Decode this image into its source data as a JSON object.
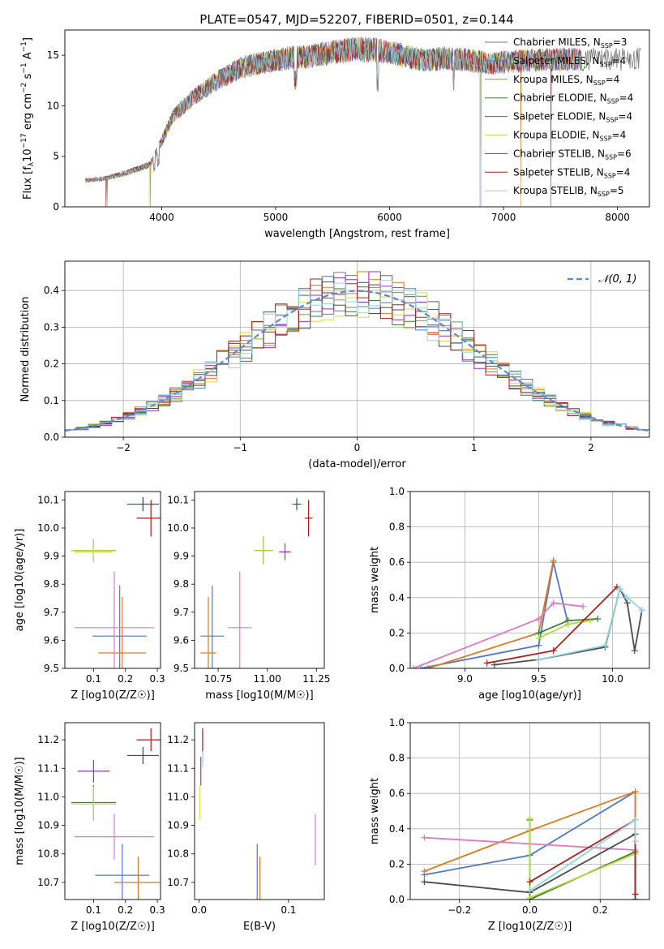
{
  "figure": {
    "title": "PLATE=0547, MJD=52207, FIBERID=0501, z=0.144"
  },
  "colors": {
    "chabrier_miles": "#7f7f7f",
    "salpeter_miles": "#4c78d0",
    "kroupa_miles": "#c8801b",
    "chabrier_elodie": "#3a7d2e",
    "salpeter_elodie": "#9b30c8",
    "kroupa_elodie": "#d8d84a",
    "chabrier_stelib": "#4d4d4d",
    "salpeter_stelib": "#b21b1b",
    "kroupa_stelib": "#8fd6e2",
    "normal": "#5b8bd6",
    "light_green": "#b5d938",
    "pink": "#e377c2",
    "orange": "#e07a1f"
  },
  "chart_data": [
    {
      "id": "spectrum",
      "type": "line",
      "xlabel": "wavelength [Angstrom, rest frame]",
      "ylabel": "Flux [f_λ10^-17 erg cm^-2 s^-1 A^-1]",
      "xlim": [
        3150,
        8280
      ],
      "ylim": [
        0,
        17.5
      ],
      "xticks": [
        "4000",
        "5000",
        "6000",
        "7000",
        "8000"
      ],
      "yticks": [
        "0",
        "5",
        "10",
        "15"
      ],
      "continuum": {
        "x": [
          3330,
          3500,
          3700,
          3900,
          4000,
          4100,
          4300,
          4500,
          4700,
          4900,
          5100,
          5300,
          5500,
          5700,
          5900,
          6100,
          6300,
          6500,
          6700,
          6900,
          7100,
          7300,
          7500
        ],
        "y": [
          2.6,
          2.8,
          3.4,
          4.2,
          6.5,
          9.0,
          11.0,
          12.6,
          13.8,
          14.3,
          14.7,
          14.9,
          15.3,
          15.6,
          15.5,
          15.0,
          14.5,
          14.7,
          14.5,
          14.2,
          14.4,
          14.5,
          14.6
        ]
      },
      "legend": {
        "position": "upper right",
        "entries": [
          {
            "label": "Chabrier MILES, N_SSP=3",
            "color": "#7f7f7f"
          },
          {
            "label": "Salpeter MILES, N_SSP=4",
            "color": "#4c78d0"
          },
          {
            "label": "Kroupa MILES, N_SSP=4",
            "color": "#c8801b"
          },
          {
            "label": "Chabrier ELODIE, N_SSP=4",
            "color": "#3a7d2e"
          },
          {
            "label": "Salpeter ELODIE, N_SSP=4",
            "color": "#9b30c8"
          },
          {
            "label": "Kroupa ELODIE, N_SSP=4",
            "color": "#d8d84a"
          },
          {
            "label": "Chabrier STELIB, N_SSP=6",
            "color": "#4d4d4d"
          },
          {
            "label": "Salpeter STELIB, N_SSP=4",
            "color": "#b21b1b"
          },
          {
            "label": "Kroupa STELIB, N_SSP=5",
            "color": "#8fd6e2"
          }
        ]
      }
    },
    {
      "id": "residuals",
      "type": "line",
      "xlabel": "(data-model)/error",
      "ylabel": "Normed distribution",
      "xlim": [
        -2.5,
        2.5
      ],
      "ylim": [
        0,
        0.48
      ],
      "xticks": [
        "−2",
        "−1",
        "0",
        "1",
        "2"
      ],
      "yticks": [
        "0.0",
        "0.1",
        "0.2",
        "0.3",
        "0.4"
      ],
      "grid": true,
      "legend": {
        "position": "upper right",
        "label": "𝒩(0, 1)"
      },
      "bin_width": 0.1
    },
    {
      "id": "z_age",
      "type": "scatter",
      "xlabel": "Z [log10(Z/Z☉)]",
      "ylabel": "age  [log10(age/yr)]",
      "xlim": [
        0.01,
        0.31
      ],
      "ylim": [
        9.5,
        10.13
      ],
      "xticks": [
        "0.1",
        "0.2",
        "0.3"
      ],
      "yticks": [
        "9.5",
        "9.6",
        "9.7",
        "9.8",
        "9.9",
        "10.0",
        "10.1"
      ],
      "points": [
        {
          "x": 0.182,
          "xerr": 0.085,
          "y": 9.615,
          "yerr": 0.18,
          "color": "#4c78d0"
        },
        {
          "x": 0.19,
          "xerr": 0.075,
          "y": 9.555,
          "yerr": 0.2,
          "color": "#e07a1f"
        },
        {
          "x": 0.165,
          "xerr": 0.125,
          "y": 9.645,
          "yerr": 0.2,
          "color": "#e377c2"
        },
        {
          "x": 0.1,
          "xerr": 0.07,
          "y": 9.92,
          "yerr": 0.04,
          "color": "#3a7d2e"
        },
        {
          "x": 0.1,
          "xerr": 0.07,
          "y": 9.92,
          "yerr": 0.04,
          "color": "#b5d938"
        },
        {
          "x": 0.1,
          "xerr": 0.06,
          "y": 9.915,
          "yerr": 0.02,
          "color": "#d8d84a"
        },
        {
          "x": 0.255,
          "xerr": 0.05,
          "y": 10.085,
          "yerr": 0.025,
          "color": "#8fd6e2"
        },
        {
          "x": 0.255,
          "xerr": 0.05,
          "y": 10.085,
          "yerr": 0.025,
          "color": "#4d4d4d"
        },
        {
          "x": 0.28,
          "xerr": 0.045,
          "y": 10.035,
          "yerr": 0.065,
          "color": "#b21b1b"
        }
      ]
    },
    {
      "id": "mass_age",
      "type": "scatter",
      "xlabel": "mass [log10(M/M☉)]",
      "ylabel": "",
      "xlim": [
        10.63,
        11.29
      ],
      "ylim": [
        9.5,
        10.13
      ],
      "xticks": [
        "10.75",
        "11.00",
        "11.25"
      ],
      "yticks": [
        "9.5",
        "9.6",
        "9.7",
        "9.8",
        "9.9",
        "10.0",
        "10.1"
      ],
      "points": [
        {
          "x": 10.72,
          "xerr": 0.06,
          "y": 9.615,
          "yerr": 0.18,
          "color": "#4c78d0"
        },
        {
          "x": 10.7,
          "xerr": 0.04,
          "y": 9.555,
          "yerr": 0.2,
          "color": "#e07a1f"
        },
        {
          "x": 10.86,
          "xerr": 0.06,
          "y": 9.645,
          "yerr": 0.2,
          "color": "#e377c2"
        },
        {
          "x": 10.98,
          "xerr": 0.04,
          "y": 9.92,
          "yerr": 0.05,
          "color": "#3a7d2e"
        },
        {
          "x": 10.98,
          "xerr": 0.05,
          "y": 9.92,
          "yerr": 0.05,
          "color": "#b5d938"
        },
        {
          "x": 11.09,
          "xerr": 0.03,
          "y": 9.915,
          "yerr": 0.03,
          "color": "#9b30c8"
        },
        {
          "x": 11.15,
          "xerr": 0.03,
          "y": 10.085,
          "yerr": 0.025,
          "color": "#8fd6e2"
        },
        {
          "x": 11.15,
          "xerr": 0.02,
          "y": 10.085,
          "yerr": 0.02,
          "color": "#4d4d4d"
        },
        {
          "x": 11.21,
          "xerr": 0.02,
          "y": 10.035,
          "yerr": 0.065,
          "color": "#b21b1b"
        }
      ]
    },
    {
      "id": "age_weight",
      "type": "line",
      "xlabel": "age  [log10(age/yr)]",
      "ylabel": "mass weight",
      "xlim": [
        8.63,
        10.25
      ],
      "ylim": [
        0,
        1.0
      ],
      "xticks": [
        "9.0",
        "9.5",
        "10.0"
      ],
      "yticks": [
        "0.0",
        "0.2",
        "0.4",
        "0.6",
        "0.8",
        "1.0"
      ],
      "grid": true,
      "series": [
        {
          "color": "#4c78d0",
          "x": [
            8.7,
            9.5,
            9.6,
            9.7
          ],
          "y": [
            0.0,
            0.13,
            0.6,
            0.25
          ]
        },
        {
          "color": "#e07a1f",
          "x": [
            8.75,
            9.5,
            9.6
          ],
          "y": [
            0.0,
            0.2,
            0.61
          ]
        },
        {
          "color": "#e377c2",
          "x": [
            8.65,
            9.5,
            9.6,
            9.8
          ],
          "y": [
            0.0,
            0.28,
            0.37,
            0.35
          ]
        },
        {
          "color": "#3a7d2e",
          "x": [
            9.5,
            9.7,
            9.9
          ],
          "y": [
            0.2,
            0.27,
            0.28
          ]
        },
        {
          "color": "#b5d938",
          "x": [
            9.5,
            9.7,
            9.85
          ],
          "y": [
            0.17,
            0.25,
            0.27
          ]
        },
        {
          "color": "#4d4d4d",
          "x": [
            9.2,
            9.5,
            9.95,
            10.05,
            10.1,
            10.15,
            10.2
          ],
          "y": [
            0.02,
            0.05,
            0.12,
            0.45,
            0.37,
            0.1,
            0.33
          ]
        },
        {
          "color": "#b21b1b",
          "x": [
            9.15,
            9.6,
            10.03
          ],
          "y": [
            0.03,
            0.1,
            0.46
          ]
        },
        {
          "color": "#8fd6e2",
          "x": [
            9.5,
            9.95,
            10.05,
            10.1,
            10.2
          ],
          "y": [
            0.05,
            0.13,
            0.45,
            0.4,
            0.33
          ]
        }
      ]
    },
    {
      "id": "z_mass",
      "type": "scatter",
      "xlabel": "Z [log10(Z/Z☉)]",
      "ylabel": "mass [log10(M/M☉)]",
      "xlim": [
        0.01,
        0.31
      ],
      "ylim": [
        10.64,
        11.26
      ],
      "xticks": [
        "0.1",
        "0.2",
        "0.3"
      ],
      "yticks": [
        "10.7",
        "10.8",
        "10.9",
        "11.0",
        "11.1",
        "11.2"
      ],
      "points": [
        {
          "x": 0.19,
          "xerr": 0.085,
          "y": 10.725,
          "yerr": 0.11,
          "color": "#4c78d0"
        },
        {
          "x": 0.24,
          "xerr": 0.075,
          "y": 10.7,
          "yerr": 0.09,
          "color": "#e07a1f"
        },
        {
          "x": 0.165,
          "xerr": 0.125,
          "y": 10.86,
          "yerr": 0.08,
          "color": "#e377c2"
        },
        {
          "x": 0.1,
          "xerr": 0.07,
          "y": 10.98,
          "yerr": 0.06,
          "color": "#3a7d2e"
        },
        {
          "x": 0.1,
          "xerr": 0.07,
          "y": 10.975,
          "yerr": 0.06,
          "color": "#b5d938"
        },
        {
          "x": 0.1,
          "xerr": 0.05,
          "y": 11.09,
          "yerr": 0.04,
          "color": "#9b30c8"
        },
        {
          "x": 0.255,
          "xerr": 0.05,
          "y": 11.145,
          "yerr": 0.03,
          "color": "#8fd6e2"
        },
        {
          "x": 0.255,
          "xerr": 0.05,
          "y": 11.145,
          "yerr": 0.03,
          "color": "#4d4d4d"
        },
        {
          "x": 0.28,
          "xerr": 0.045,
          "y": 11.2,
          "yerr": 0.04,
          "color": "#b21b1b"
        }
      ]
    },
    {
      "id": "ebv_mass",
      "type": "scatter",
      "xlabel": "E(B-V)",
      "ylabel": "",
      "xlim": [
        -0.005,
        0.14
      ],
      "ylim": [
        10.64,
        11.26
      ],
      "xticks": [
        "0.0",
        "0.1"
      ],
      "yticks": [
        "10.7",
        "10.8",
        "10.9",
        "11.0",
        "11.1",
        "11.2"
      ],
      "points": [
        {
          "x": 0.065,
          "xerr": 0,
          "y": 10.725,
          "yerr": 0.11,
          "color": "#4c78d0"
        },
        {
          "x": 0.068,
          "xerr": 0,
          "y": 10.7,
          "yerr": 0.09,
          "color": "#e07a1f"
        },
        {
          "x": 0.13,
          "xerr": 0,
          "y": 10.85,
          "yerr": 0.09,
          "color": "#e377c2"
        },
        {
          "x": 0.001,
          "xerr": 0,
          "y": 10.98,
          "yerr": 0.06,
          "color": "#d8d84a"
        },
        {
          "x": 0.002,
          "xerr": 0,
          "y": 11.09,
          "yerr": 0.05,
          "color": "#9b30c8"
        },
        {
          "x": 0.004,
          "xerr": 0,
          "y": 11.145,
          "yerr": 0.04,
          "color": "#8fd6e2"
        },
        {
          "x": 0.004,
          "xerr": 0,
          "y": 11.2,
          "yerr": 0.04,
          "color": "#b21b1b"
        }
      ]
    },
    {
      "id": "z_weight",
      "type": "line",
      "xlabel": "Z [log10(Z/Z☉)]",
      "ylabel": "mass weight",
      "xlim": [
        -0.34,
        0.34
      ],
      "ylim": [
        0,
        1.0
      ],
      "xticks": [
        "−0.2",
        "0.0",
        "0.2"
      ],
      "yticks": [
        "0.0",
        "0.2",
        "0.4",
        "0.6",
        "0.8",
        "1.0"
      ],
      "grid": true,
      "series": [
        {
          "color": "#4c78d0",
          "x": [
            -0.3,
            0.0,
            0.3,
            0.3
          ],
          "y": [
            0.14,
            0.25,
            0.61,
            0.0
          ]
        },
        {
          "color": "#e07a1f",
          "x": [
            -0.3,
            0.0,
            0.3,
            0.3
          ],
          "y": [
            0.16,
            0.39,
            0.61,
            0.0
          ]
        },
        {
          "color": "#e377c2",
          "x": [
            -0.3,
            0.3
          ],
          "y": [
            0.35,
            0.28
          ]
        },
        {
          "color": "#3a7d2e",
          "x": [
            0.0,
            0.0,
            0.3,
            0.3
          ],
          "y": [
            0.45,
            0.0,
            0.27,
            0.0
          ]
        },
        {
          "color": "#b5d938",
          "x": [
            0.0,
            0.0,
            0.3
          ],
          "y": [
            0.46,
            0.01,
            0.26
          ]
        },
        {
          "color": "#4d4d4d",
          "x": [
            -0.3,
            0.0,
            0.3,
            0.3
          ],
          "y": [
            0.1,
            0.04,
            0.37,
            0.0
          ]
        },
        {
          "color": "#b21b1b",
          "x": [
            0.0,
            0.3,
            0.3
          ],
          "y": [
            0.1,
            0.45,
            0.03
          ]
        },
        {
          "color": "#8fd6e2",
          "x": [
            0.0,
            0.3,
            0.3
          ],
          "y": [
            0.05,
            0.45,
            0.33
          ]
        }
      ]
    }
  ]
}
